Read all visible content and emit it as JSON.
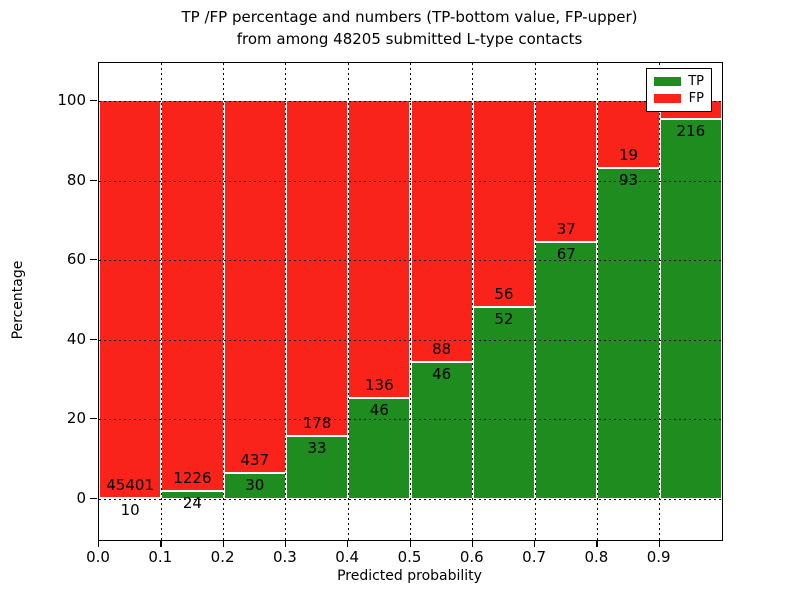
{
  "title": {
    "line1": "TP /FP percentage and numbers (TP-bottom value, FP-upper)",
    "line2": "from among 48205 submitted L-type contacts"
  },
  "axes": {
    "ylabel": "Percentage",
    "xlabel": "Predicted probability",
    "ytick_labels": [
      "0",
      "20",
      "40",
      "60",
      "80",
      "100"
    ],
    "ytick_values": [
      0,
      20,
      40,
      60,
      80,
      100
    ],
    "xtick_labels": [
      "0.0",
      "0.1",
      "0.2",
      "0.3",
      "0.4",
      "0.5",
      "0.6",
      "0.7",
      "0.8",
      "0.9"
    ],
    "xtick_values": [
      0.0,
      0.1,
      0.2,
      0.3,
      0.4,
      0.5,
      0.6,
      0.7,
      0.8,
      0.9
    ]
  },
  "legend": {
    "entries": [
      {
        "label": "TP",
        "color": "#1e8c1e"
      },
      {
        "label": "FP",
        "color": "#fa231a"
      }
    ]
  },
  "chart_data": {
    "type": "bar",
    "stacked": true,
    "title": "TP /FP percentage and numbers (TP-bottom value, FP-upper) from among 48205 submitted L-type contacts",
    "xlabel": "Predicted probability",
    "ylabel": "Percentage",
    "xlim": [
      0.0,
      1.0
    ],
    "ylim": [
      -10.5,
      109.5
    ],
    "grid": "dotted",
    "legend_position": "upper right",
    "bin_width": 0.1,
    "categories": [
      "0.0",
      "0.1",
      "0.2",
      "0.3",
      "0.4",
      "0.5",
      "0.6",
      "0.7",
      "0.8",
      "0.9"
    ],
    "series": [
      {
        "name": "TP",
        "color": "#1e8c1e",
        "percent": [
          0.02,
          1.92,
          6.42,
          15.64,
          25.27,
          34.33,
          48.15,
          64.42,
          83.04,
          95.58
        ],
        "count_labels": [
          "10",
          "24",
          "30",
          "33",
          "46",
          "46",
          "52",
          "67",
          "93",
          "216"
        ]
      },
      {
        "name": "FP",
        "color": "#fa231a",
        "percent": [
          99.98,
          98.08,
          93.58,
          84.36,
          74.73,
          65.67,
          51.85,
          35.58,
          16.96,
          4.42
        ],
        "count_labels": [
          "45401",
          "1226",
          "437",
          "178",
          "136",
          "88",
          "56",
          "37",
          "19",
          null
        ]
      }
    ]
  }
}
